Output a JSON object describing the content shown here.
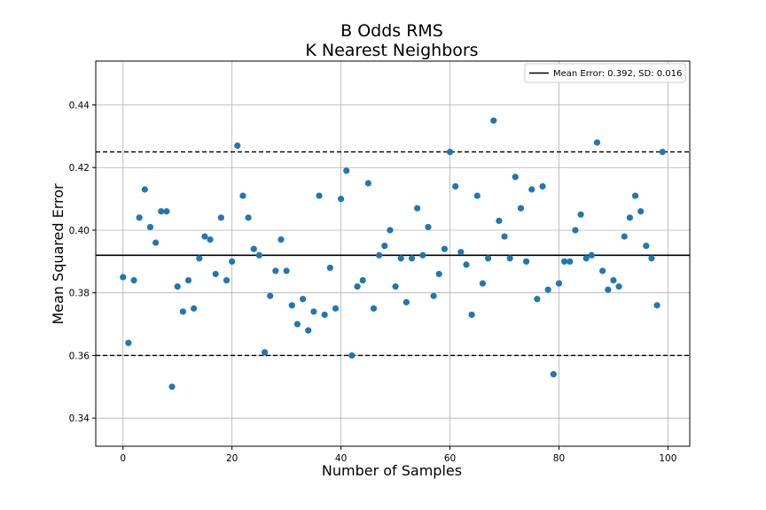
{
  "chart_data": {
    "type": "scatter",
    "title_line1": "B Odds RMS",
    "title_line2": "K Nearest Neighbors",
    "xlabel": "Number of Samples",
    "ylabel": "Mean Squared Error",
    "xlim": [
      -5,
      104
    ],
    "ylim": [
      0.331,
      0.454
    ],
    "xticks": [
      0,
      20,
      40,
      60,
      80,
      100
    ],
    "yticks": [
      0.34,
      0.36,
      0.38,
      0.4,
      0.42,
      0.44
    ],
    "ytick_labels": [
      "0.34",
      "0.36",
      "0.38",
      "0.40",
      "0.42",
      "0.44"
    ],
    "grid": true,
    "legend_position": "top-right",
    "legend_label": "Mean Error: 0.392, SD: 0.016",
    "mean": 0.392,
    "upper": 0.425,
    "lower": 0.36,
    "colors": {
      "points": "#1f77b4",
      "lines": "#000000",
      "grid": "#b0b0b0"
    },
    "x": [
      0,
      1,
      2,
      3,
      4,
      5,
      6,
      7,
      8,
      9,
      10,
      11,
      12,
      13,
      14,
      15,
      16,
      17,
      18,
      19,
      20,
      21,
      22,
      23,
      24,
      25,
      26,
      27,
      28,
      29,
      30,
      31,
      32,
      33,
      34,
      35,
      36,
      37,
      38,
      39,
      40,
      41,
      42,
      43,
      44,
      45,
      46,
      47,
      48,
      49,
      50,
      51,
      52,
      53,
      54,
      55,
      56,
      57,
      58,
      59,
      60,
      61,
      62,
      63,
      64,
      65,
      66,
      67,
      68,
      69,
      70,
      71,
      72,
      73,
      74,
      75,
      76,
      77,
      78,
      79,
      80,
      81,
      82,
      83,
      84,
      85,
      86,
      87,
      88,
      89,
      90,
      91,
      92,
      93,
      94,
      95,
      96,
      97,
      98,
      99
    ],
    "y": [
      0.385,
      0.364,
      0.384,
      0.404,
      0.413,
      0.401,
      0.396,
      0.406,
      0.406,
      0.35,
      0.382,
      0.374,
      0.384,
      0.375,
      0.391,
      0.398,
      0.397,
      0.386,
      0.404,
      0.384,
      0.39,
      0.427,
      0.411,
      0.404,
      0.394,
      0.392,
      0.361,
      0.379,
      0.387,
      0.397,
      0.387,
      0.376,
      0.37,
      0.378,
      0.368,
      0.374,
      0.411,
      0.373,
      0.388,
      0.375,
      0.41,
      0.419,
      0.36,
      0.382,
      0.384,
      0.415,
      0.375,
      0.392,
      0.395,
      0.4,
      0.382,
      0.391,
      0.377,
      0.391,
      0.407,
      0.392,
      0.401,
      0.379,
      0.386,
      0.394,
      0.425,
      0.414,
      0.393,
      0.389,
      0.373,
      0.411,
      0.383,
      0.391,
      0.435,
      0.403,
      0.398,
      0.391,
      0.417,
      0.407,
      0.39,
      0.413,
      0.378,
      0.414,
      0.381,
      0.354,
      0.383,
      0.39,
      0.39,
      0.4,
      0.405,
      0.391,
      0.392,
      0.428,
      0.387,
      0.381,
      0.384,
      0.382,
      0.398,
      0.404,
      0.411,
      0.406,
      0.395,
      0.391,
      0.376,
      0.425
    ]
  }
}
